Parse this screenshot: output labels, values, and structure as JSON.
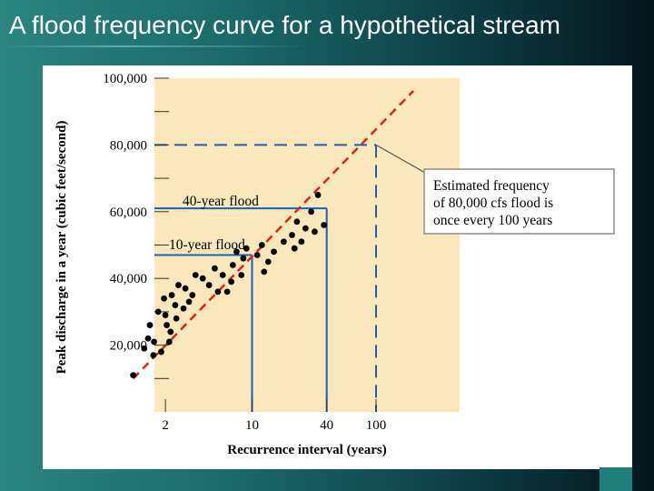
{
  "slide": {
    "title": "A flood frequency curve for a hypothetical stream"
  },
  "colors": {
    "plot_background": "#fae7bb",
    "data_points": "#000000",
    "frequency_curve": "#d8261f",
    "guide_lines": "#1d5fb4",
    "callout_border": "#8c8c8c"
  },
  "chart_data": {
    "type": "scatter",
    "title": "",
    "xlabel": "Recurrence interval (years)",
    "ylabel": "Peak discharge in a year (cubic feet/second)",
    "x_scale": "log",
    "xlim": [
      1,
      200
    ],
    "ylim": [
      0,
      100000
    ],
    "x_ticks": [
      {
        "value": 2,
        "label": "2"
      },
      {
        "value": 10,
        "label": "10"
      },
      {
        "value": 40,
        "label": "40"
      },
      {
        "value": 100,
        "label": "100"
      }
    ],
    "y_ticks": [
      {
        "value": 20000,
        "label": "20,000"
      },
      {
        "value": 40000,
        "label": "40,000"
      },
      {
        "value": 60000,
        "label": "60,000"
      },
      {
        "value": 80000,
        "label": "80,000"
      },
      {
        "value": 100000,
        "label": "100,000"
      }
    ],
    "y_minor_ticks": [
      10000,
      30000,
      50000,
      70000,
      90000
    ],
    "points": [
      [
        1.1,
        11000
      ],
      [
        1.35,
        19000
      ],
      [
        1.45,
        22000
      ],
      [
        1.5,
        26000
      ],
      [
        1.6,
        17000
      ],
      [
        1.62,
        21000
      ],
      [
        1.75,
        30000
      ],
      [
        1.85,
        18000
      ],
      [
        1.95,
        34000
      ],
      [
        2.0,
        29000
      ],
      [
        2.05,
        26000
      ],
      [
        2.15,
        21000
      ],
      [
        2.2,
        24000
      ],
      [
        2.25,
        35000
      ],
      [
        2.4,
        32000
      ],
      [
        2.45,
        28000
      ],
      [
        2.55,
        38000
      ],
      [
        2.8,
        31000
      ],
      [
        2.9,
        37000
      ],
      [
        3.1,
        33000
      ],
      [
        3.3,
        35000
      ],
      [
        3.5,
        41000
      ],
      [
        4.0,
        40000
      ],
      [
        4.5,
        38000
      ],
      [
        5.0,
        43000
      ],
      [
        5.3,
        36000
      ],
      [
        5.8,
        41000
      ],
      [
        6.3,
        36000
      ],
      [
        6.8,
        39000
      ],
      [
        7.0,
        44000
      ],
      [
        7.5,
        48000
      ],
      [
        8.2,
        41000
      ],
      [
        8.5,
        46000
      ],
      [
        9.0,
        49000
      ],
      [
        11.0,
        47000
      ],
      [
        12.0,
        50000
      ],
      [
        12.5,
        42000
      ],
      [
        13.5,
        45000
      ],
      [
        15.0,
        48000
      ],
      [
        18.0,
        51000
      ],
      [
        21.0,
        53000
      ],
      [
        22.0,
        49000
      ],
      [
        23.0,
        57000
      ],
      [
        25.0,
        51000
      ],
      [
        27.0,
        55000
      ],
      [
        30.0,
        60000
      ],
      [
        32.0,
        54000
      ],
      [
        38.0,
        56000
      ],
      [
        34.0,
        65000
      ]
    ],
    "frequency_curve": [
      [
        1.1,
        10000
      ],
      [
        200,
        100000
      ]
    ],
    "guide_lines": [
      {
        "recurrence_years": 10,
        "discharge_cfs": 47000
      },
      {
        "recurrence_years": 40,
        "discharge_cfs": 61000
      },
      {
        "recurrence_years": 100,
        "discharge_cfs": 80000,
        "style": "dashed"
      }
    ],
    "annotations": {
      "forty_year_flood": "40-year flood",
      "ten_year_flood": "10-year flood",
      "callout_lines": [
        "Estimated frequency",
        "of 80,000 cfs flood is",
        "once every 100 years"
      ]
    }
  }
}
